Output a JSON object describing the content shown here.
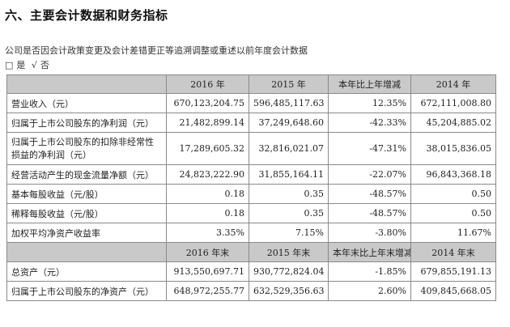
{
  "section": {
    "title": "六、主要会计数据和财务指标"
  },
  "question": "公司是否因会计政策变更及会计差错更正等追溯调整或重述以前年度会计数据",
  "options": {
    "box": "□",
    "yes": "是",
    "check": "√",
    "no": "否"
  },
  "table": {
    "header1": [
      "",
      "2016 年",
      "2015 年",
      "本年比上年增减",
      "2014 年"
    ],
    "rows1": [
      {
        "label": "营业收入（元）",
        "v2016": "670,123,204.75",
        "v2015": "596,485,117.63",
        "change": "12.35%",
        "v2014": "672,111,008.80"
      },
      {
        "label": "归属于上市公司股东的净利润（元）",
        "v2016": "21,482,899.14",
        "v2015": "37,249,648.60",
        "change": "-42.33%",
        "v2014": "45,204,885.02"
      },
      {
        "label": "归属于上市公司股东的扣除非经常性损益的净利润（元）",
        "v2016": "17,289,605.32",
        "v2015": "32,816,021.07",
        "change": "-47.31%",
        "v2014": "38,015,836.05"
      },
      {
        "label": "经营活动产生的现金流量净额（元）",
        "v2016": "24,823,222.90",
        "v2015": "31,855,164.11",
        "change": "-22.07%",
        "v2014": "96,843,368.18"
      },
      {
        "label": "基本每股收益（元/股）",
        "v2016": "0.18",
        "v2015": "0.35",
        "change": "-48.57%",
        "v2014": "0.50"
      },
      {
        "label": "稀释每股收益（元/股）",
        "v2016": "0.18",
        "v2015": "0.35",
        "change": "-48.57%",
        "v2014": "0.50"
      },
      {
        "label": "加权平均净资产收益率",
        "v2016": "3.35%",
        "v2015": "7.15%",
        "change": "-3.80%",
        "v2014": "11.67%"
      }
    ],
    "header2": [
      "",
      "2016 年末",
      "2015 年末",
      "本年末比上年末增减",
      "2014 年末"
    ],
    "rows2": [
      {
        "label": "总资产（元）",
        "v2016": "913,550,697.71",
        "v2015": "930,772,824.04",
        "change": "-1.85%",
        "v2014": "679,855,191.13"
      },
      {
        "label": "归属于上市公司股东的净资产（元）",
        "v2016": "648,972,255.77",
        "v2015": "632,529,356.63",
        "change": "2.60%",
        "v2014": "409,845,668.05"
      }
    ]
  }
}
